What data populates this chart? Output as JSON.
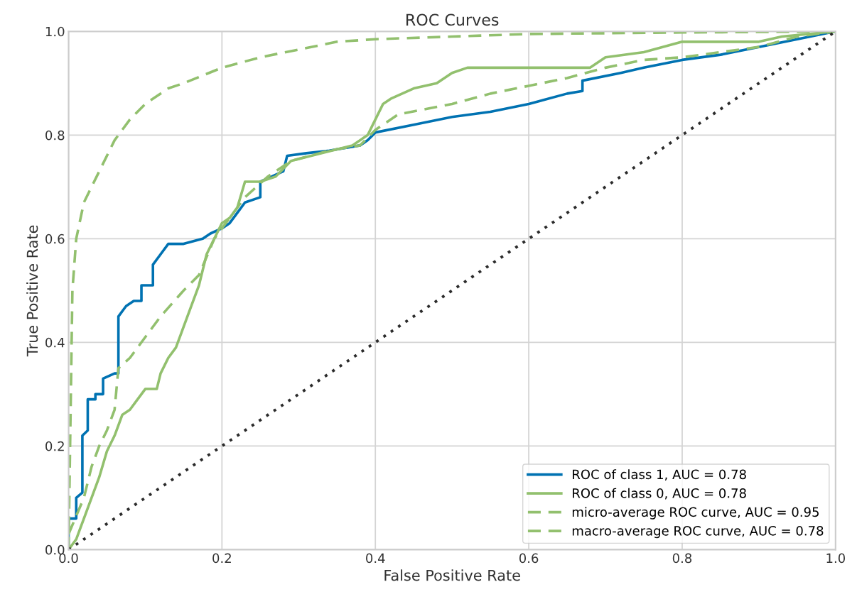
{
  "chart_data": {
    "type": "line",
    "title": "ROC Curves",
    "xlabel": "False Positive Rate",
    "ylabel": "True Positive Rate",
    "xlim": [
      0,
      1
    ],
    "ylim": [
      0,
      1
    ],
    "xticks": [
      {
        "value": 0,
        "label": "0.0"
      },
      {
        "value": 0.2,
        "label": "0.2"
      },
      {
        "value": 0.4,
        "label": "0.4"
      },
      {
        "value": 0.6,
        "label": "0.6"
      },
      {
        "value": 0.8,
        "label": "0.8"
      },
      {
        "value": 1,
        "label": "1.0"
      }
    ],
    "yticks": [
      {
        "value": 0,
        "label": "0.0"
      },
      {
        "value": 0.2,
        "label": "0.2"
      },
      {
        "value": 0.4,
        "label": "0.4"
      },
      {
        "value": 0.6,
        "label": "0.6"
      },
      {
        "value": 0.8,
        "label": "0.8"
      },
      {
        "value": 1,
        "label": "1.0"
      }
    ],
    "grid": true,
    "legend": "bottom right",
    "marker": "none",
    "series": [
      {
        "name": "ROC of class 1, AUC = 0.78",
        "color": "#0072b2",
        "line_style": "solid",
        "x": [
          0,
          0,
          0.01,
          0.01,
          0.018,
          0.018,
          0.025,
          0.025,
          0.035,
          0.035,
          0.045,
          0.045,
          0.06,
          0.065,
          0.065,
          0.075,
          0.085,
          0.095,
          0.095,
          0.11,
          0.11,
          0.12,
          0.13,
          0.15,
          0.175,
          0.185,
          0.2,
          0.21,
          0.22,
          0.23,
          0.25,
          0.25,
          0.265,
          0.28,
          0.285,
          0.31,
          0.34,
          0.38,
          0.39,
          0.4,
          0.45,
          0.5,
          0.55,
          0.6,
          0.65,
          0.67,
          0.67,
          0.72,
          0.75,
          0.8,
          0.85,
          0.9,
          0.95,
          1
        ],
        "values": [
          0,
          0.06,
          0.06,
          0.1,
          0.11,
          0.22,
          0.23,
          0.29,
          0.29,
          0.3,
          0.3,
          0.33,
          0.34,
          0.34,
          0.45,
          0.47,
          0.48,
          0.48,
          0.51,
          0.51,
          0.55,
          0.57,
          0.59,
          0.59,
          0.6,
          0.61,
          0.62,
          0.63,
          0.65,
          0.67,
          0.68,
          0.71,
          0.72,
          0.73,
          0.76,
          0.765,
          0.77,
          0.78,
          0.79,
          0.805,
          0.82,
          0.835,
          0.845,
          0.86,
          0.88,
          0.885,
          0.905,
          0.92,
          0.93,
          0.945,
          0.955,
          0.97,
          0.985,
          1
        ]
      },
      {
        "name": "ROC of class 0, AUC = 0.78",
        "color": "#92c06e",
        "line_style": "solid",
        "x": [
          0,
          0.01,
          0.015,
          0.02,
          0.03,
          0.04,
          0.05,
          0.06,
          0.07,
          0.08,
          0.09,
          0.1,
          0.115,
          0.12,
          0.13,
          0.14,
          0.15,
          0.16,
          0.17,
          0.18,
          0.19,
          0.2,
          0.21,
          0.22,
          0.23,
          0.25,
          0.27,
          0.29,
          0.33,
          0.37,
          0.39,
          0.4,
          0.41,
          0.42,
          0.45,
          0.48,
          0.49,
          0.5,
          0.52,
          0.68,
          0.7,
          0.75,
          0.8,
          0.9,
          0.93,
          1
        ],
        "values": [
          0,
          0.02,
          0.04,
          0.06,
          0.1,
          0.14,
          0.19,
          0.22,
          0.26,
          0.27,
          0.29,
          0.31,
          0.31,
          0.34,
          0.37,
          0.39,
          0.43,
          0.47,
          0.51,
          0.57,
          0.6,
          0.63,
          0.64,
          0.66,
          0.71,
          0.71,
          0.72,
          0.75,
          0.765,
          0.78,
          0.8,
          0.83,
          0.86,
          0.87,
          0.89,
          0.9,
          0.91,
          0.92,
          0.93,
          0.93,
          0.95,
          0.96,
          0.98,
          0.98,
          0.99,
          1
        ]
      },
      {
        "name": "micro-average ROC curve, AUC = 0.95",
        "color": "#92c06e",
        "line_style": "dashed",
        "x": [
          0,
          0.003,
          0.005,
          0.01,
          0.02,
          0.04,
          0.06,
          0.08,
          0.1,
          0.13,
          0.15,
          0.2,
          0.25,
          0.3,
          0.35,
          0.4,
          0.5,
          0.6,
          0.8,
          1
        ],
        "values": [
          0,
          0.3,
          0.5,
          0.6,
          0.67,
          0.73,
          0.79,
          0.83,
          0.86,
          0.89,
          0.9,
          0.93,
          0.95,
          0.965,
          0.98,
          0.985,
          0.99,
          0.995,
          0.998,
          1
        ]
      },
      {
        "name": "macro-average ROC curve, AUC = 0.78",
        "color": "#92c06e",
        "line_style": "dashed",
        "x": [
          0,
          0.02,
          0.03,
          0.04,
          0.05,
          0.06,
          0.065,
          0.08,
          0.1,
          0.12,
          0.15,
          0.17,
          0.19,
          0.2,
          0.23,
          0.26,
          0.29,
          0.34,
          0.38,
          0.4,
          0.43,
          0.5,
          0.55,
          0.6,
          0.65,
          0.7,
          0.75,
          0.8,
          0.9,
          0.95,
          1
        ],
        "values": [
          0.03,
          0.1,
          0.16,
          0.2,
          0.23,
          0.27,
          0.35,
          0.37,
          0.41,
          0.45,
          0.5,
          0.53,
          0.6,
          0.62,
          0.68,
          0.72,
          0.75,
          0.77,
          0.78,
          0.81,
          0.84,
          0.86,
          0.88,
          0.895,
          0.91,
          0.93,
          0.945,
          0.95,
          0.97,
          0.99,
          1
        ]
      },
      {
        "color": "#2b2b2b",
        "line_style": "dotted",
        "x": [
          0,
          1
        ],
        "values": [
          0,
          1
        ]
      }
    ]
  }
}
